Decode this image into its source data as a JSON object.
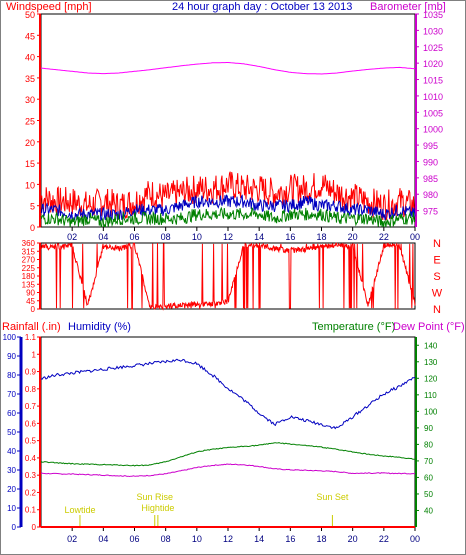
{
  "chart_data": [
    {
      "type": "line",
      "title": "24 hour graph day : October 13 2013",
      "ylabel_left": "Windspeed [mph]",
      "ylabel_right": "Barometer [mb]",
      "ylim_left": [
        0,
        50
      ],
      "ylim_right": [
        970,
        1035
      ],
      "yticks_left": [
        "0",
        "5",
        "10",
        "15",
        "20",
        "25",
        "30",
        "35",
        "40",
        "45",
        "50"
      ],
      "yticks_right": [
        "975",
        "980",
        "985",
        "990",
        "995",
        "1000",
        "1005",
        "1010",
        "1015",
        "1020",
        "1025",
        "1030",
        "1035"
      ],
      "x_hours": [
        0,
        1,
        2,
        3,
        4,
        5,
        6,
        7,
        8,
        9,
        10,
        11,
        12,
        13,
        14,
        15,
        16,
        17,
        18,
        19,
        20,
        21,
        22,
        23,
        24
      ],
      "xticks": [
        "02",
        "04",
        "06",
        "08",
        "10",
        "12",
        "14",
        "16",
        "18",
        "20",
        "22",
        "00"
      ],
      "series": [
        {
          "name": "Windspeed gust",
          "color": "#ff0000",
          "values": [
            7,
            6,
            6,
            5,
            6,
            5,
            6,
            8,
            7,
            8,
            9,
            9,
            10,
            9,
            9,
            8,
            9,
            9,
            10,
            8,
            7,
            6,
            5,
            6,
            5
          ]
        },
        {
          "name": "Windspeed avg",
          "color": "#0000c0",
          "values": [
            4,
            4,
            3,
            3,
            3,
            3,
            4,
            4,
            4,
            5,
            6,
            6,
            6,
            6,
            5,
            5,
            5,
            6,
            5,
            5,
            4,
            4,
            3,
            4,
            3
          ]
        },
        {
          "name": "Windspeed min",
          "color": "#008000",
          "values": [
            2,
            2,
            1,
            2,
            1,
            2,
            2,
            2,
            2,
            2,
            3,
            3,
            3,
            3,
            3,
            2,
            3,
            3,
            3,
            2,
            2,
            2,
            1,
            2,
            2
          ]
        },
        {
          "name": "Barometer",
          "color": "#ff00ff",
          "values": [
            1018.5,
            1018.0,
            1017.5,
            1017.0,
            1016.8,
            1017.0,
            1017.5,
            1018.0,
            1018.6,
            1019.2,
            1019.7,
            1020.1,
            1020.2,
            1019.8,
            1019.0,
            1018.0,
            1017.2,
            1016.8,
            1016.7,
            1017.0,
            1017.6,
            1018.1,
            1018.5,
            1018.7,
            1018.3
          ]
        }
      ]
    },
    {
      "type": "line",
      "ylim": [
        0,
        360
      ],
      "yticks": [
        "0",
        "45",
        "90",
        "135",
        "180",
        "225",
        "270",
        "315",
        "360"
      ],
      "compass": [
        "N",
        "W",
        "S",
        "E",
        "N"
      ],
      "x_hours": [
        0,
        1,
        2,
        3,
        4,
        5,
        6,
        7,
        8,
        9,
        10,
        11,
        12,
        13,
        14,
        15,
        16,
        17,
        18,
        19,
        20,
        21,
        22,
        23,
        24
      ],
      "series": [
        {
          "name": "Wind direction",
          "color": "#ff0000",
          "values": [
            340,
            335,
            345,
            20,
            340,
            330,
            350,
            10,
            15,
            20,
            25,
            30,
            40,
            350,
            345,
            330,
            320,
            325,
            340,
            350,
            340,
            20,
            345,
            350,
            30
          ]
        }
      ]
    },
    {
      "type": "line",
      "ylabel_left_1": "Rainfall (.in)",
      "ylabel_left_2": "Humidity (%)",
      "ylabel_right_1": "Temperature (°F)",
      "ylabel_right_2": "Dew Point (°F)",
      "rain_ylim": [
        0,
        1.1
      ],
      "rain_ticks": [
        "0",
        "0.1",
        "0.2",
        "0.3",
        "0.4",
        "0.5",
        "0.6",
        "0.7",
        "0.8",
        "0.9",
        "1",
        "1.1"
      ],
      "hum_ylim": [
        0,
        100
      ],
      "hum_ticks": [
        "0",
        "10",
        "20",
        "30",
        "40",
        "50",
        "60",
        "70",
        "80",
        "90",
        "100"
      ],
      "temp_ylim": [
        30,
        145
      ],
      "temp_ticks": [
        "40",
        "50",
        "60",
        "70",
        "80",
        "90",
        "100",
        "110",
        "120",
        "130",
        "140"
      ],
      "x_hours": [
        0,
        1,
        2,
        3,
        4,
        5,
        6,
        7,
        8,
        9,
        10,
        11,
        12,
        13,
        14,
        15,
        16,
        17,
        18,
        19,
        20,
        21,
        22,
        23,
        24
      ],
      "xticks": [
        "02",
        "04",
        "06",
        "08",
        "10",
        "12",
        "14",
        "16",
        "18",
        "20",
        "22",
        "00"
      ],
      "annotations": [
        {
          "label": "Lowtide",
          "hour": 2.5,
          "align": "middle"
        },
        {
          "label": "Sun Rise",
          "hour": 7.3,
          "align": "middle"
        },
        {
          "label": "Hightide",
          "hour": 7.5,
          "align": "middle"
        },
        {
          "label": "Sun Set",
          "hour": 18.7,
          "align": "middle"
        }
      ],
      "series": [
        {
          "name": "Humidity",
          "color": "#0000c0",
          "axis": "hum",
          "values": [
            78,
            80,
            81,
            82,
            83,
            84,
            85,
            86,
            87,
            88,
            86,
            80,
            73,
            67,
            60,
            54,
            58,
            56,
            54,
            52,
            58,
            64,
            70,
            74,
            79
          ]
        },
        {
          "name": "Temperature",
          "color": "#008000",
          "axis": "temp",
          "values": [
            69.5,
            68.8,
            68.3,
            68.0,
            67.7,
            67.5,
            67.2,
            67.5,
            69.5,
            72.5,
            75.5,
            77.0,
            78.0,
            78.8,
            79.5,
            81.0,
            80.2,
            79.3,
            78.3,
            77.0,
            75.5,
            74.0,
            73.0,
            72.2,
            71.0
          ]
        },
        {
          "name": "Dew Point",
          "color": "#cc00cc",
          "axis": "temp",
          "values": [
            62.5,
            62.2,
            62.0,
            61.7,
            61.4,
            61.0,
            60.7,
            61.2,
            62.2,
            64.0,
            66.0,
            67.3,
            68.0,
            67.7,
            66.7,
            65.2,
            64.6,
            64.3,
            64.0,
            63.5,
            62.5,
            62.6,
            62.6,
            62.4,
            62.3
          ]
        },
        {
          "name": "Rainfall",
          "color": "#ff0000",
          "axis": "rain",
          "values": [
            0,
            0,
            0,
            0,
            0,
            0,
            0,
            0,
            0,
            0,
            0,
            0,
            0,
            0,
            0,
            0,
            0,
            0,
            0,
            0,
            0,
            0,
            0,
            0,
            0
          ]
        }
      ]
    }
  ]
}
